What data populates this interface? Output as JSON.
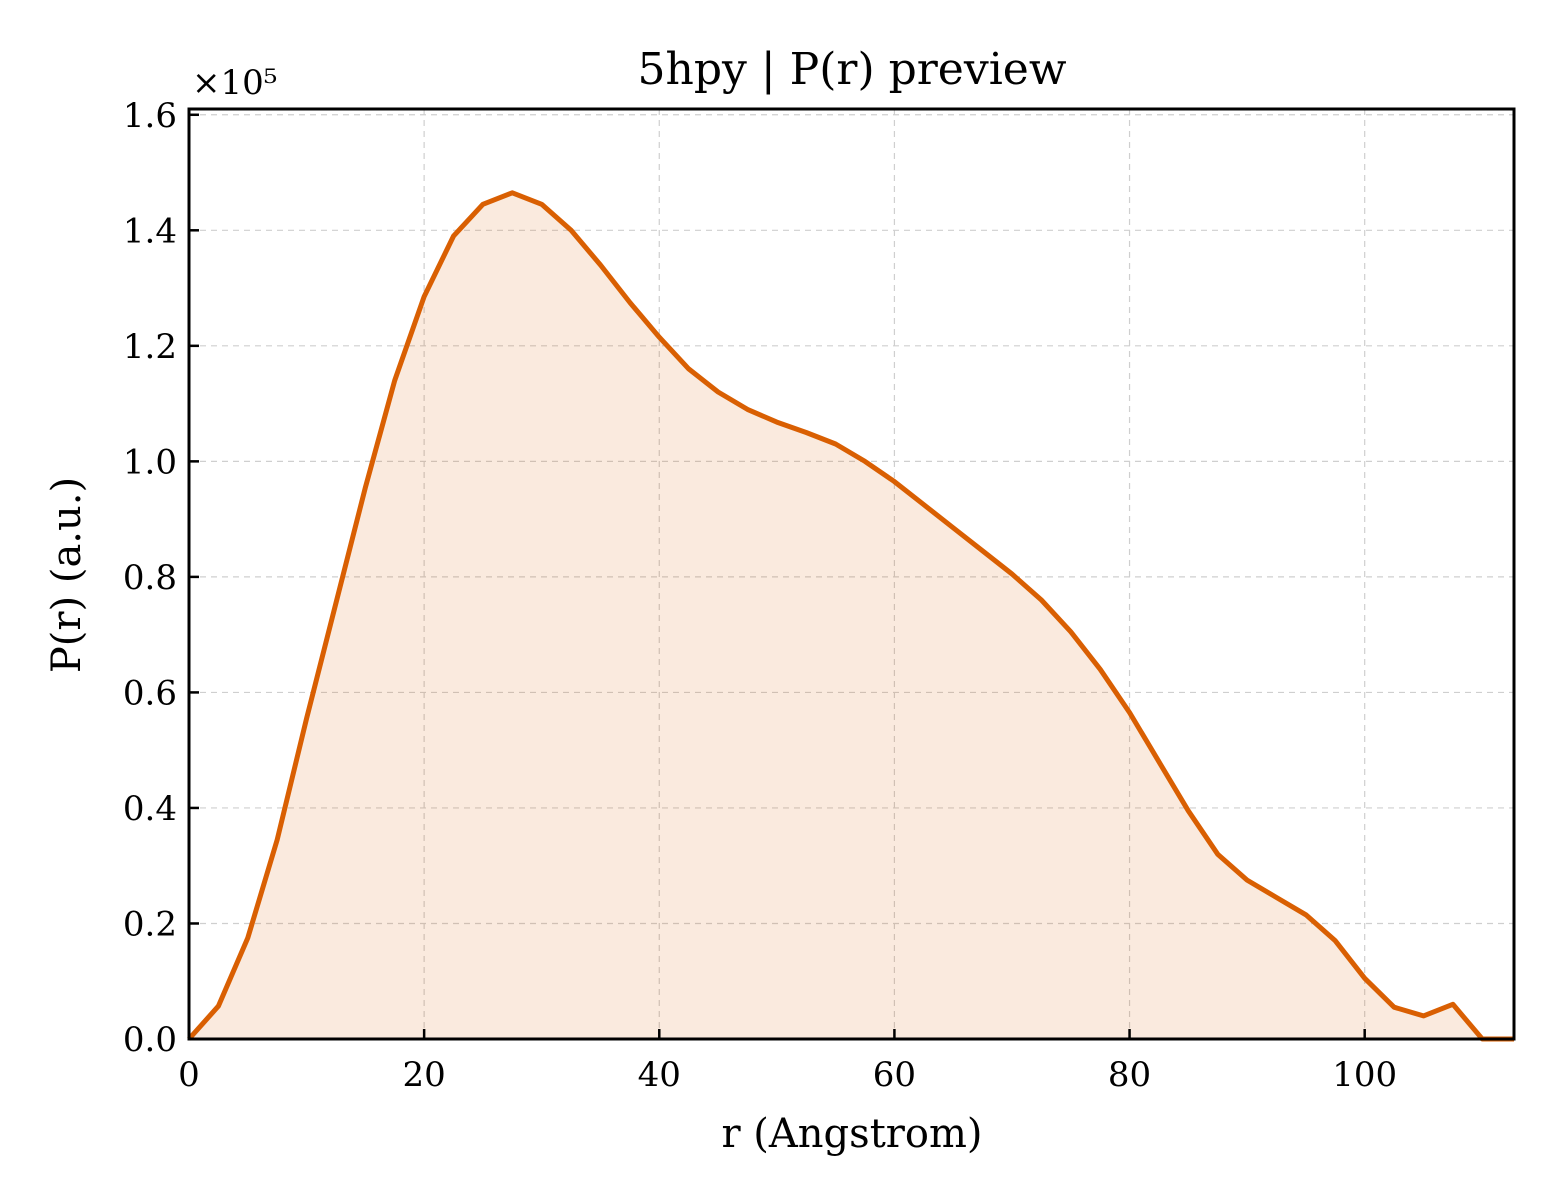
{
  "chart_data": {
    "type": "area",
    "title": "5hpy | P(r) preview",
    "xlabel": "r (Angstrom)",
    "ylabel": "P(r) (a.u.)",
    "y_multiplier_label": "×10⁵",
    "y_scale": 100000,
    "xlim": [
      0,
      112.7
    ],
    "ylim": [
      0,
      1.61
    ],
    "xticks": [
      0,
      20,
      40,
      60,
      80,
      100
    ],
    "yticks": [
      0.0,
      0.2,
      0.4,
      0.6,
      0.8,
      1.0,
      1.2,
      1.4,
      1.6
    ],
    "grid": true,
    "line_color": "#d95f02",
    "fill_color": "#d95f02",
    "fill_opacity": 0.13,
    "x": [
      0,
      2.5,
      5.0,
      7.5,
      10.0,
      12.5,
      15.0,
      17.5,
      20.0,
      22.5,
      25.0,
      27.5,
      30.0,
      32.5,
      35.0,
      37.5,
      40.0,
      42.5,
      45.0,
      47.5,
      50.0,
      52.5,
      55.0,
      57.5,
      60.0,
      62.5,
      65.0,
      67.5,
      70.0,
      72.5,
      75.0,
      77.5,
      80.0,
      82.5,
      85.0,
      87.5,
      90.0,
      92.5,
      95.0,
      97.5,
      100.0,
      102.5,
      105.0,
      107.5,
      110.0,
      112.7
    ],
    "y": [
      0.0,
      0.057,
      0.175,
      0.345,
      0.555,
      0.755,
      0.955,
      1.14,
      1.285,
      1.39,
      1.445,
      1.465,
      1.445,
      1.4,
      1.34,
      1.275,
      1.215,
      1.16,
      1.12,
      1.09,
      1.068,
      1.05,
      1.03,
      1.0,
      0.965,
      0.925,
      0.885,
      0.845,
      0.805,
      0.76,
      0.705,
      0.64,
      0.565,
      0.48,
      0.395,
      0.32,
      0.275,
      0.245,
      0.215,
      0.17,
      0.105,
      0.055,
      0.04,
      0.06,
      0.0,
      0.0
    ]
  }
}
